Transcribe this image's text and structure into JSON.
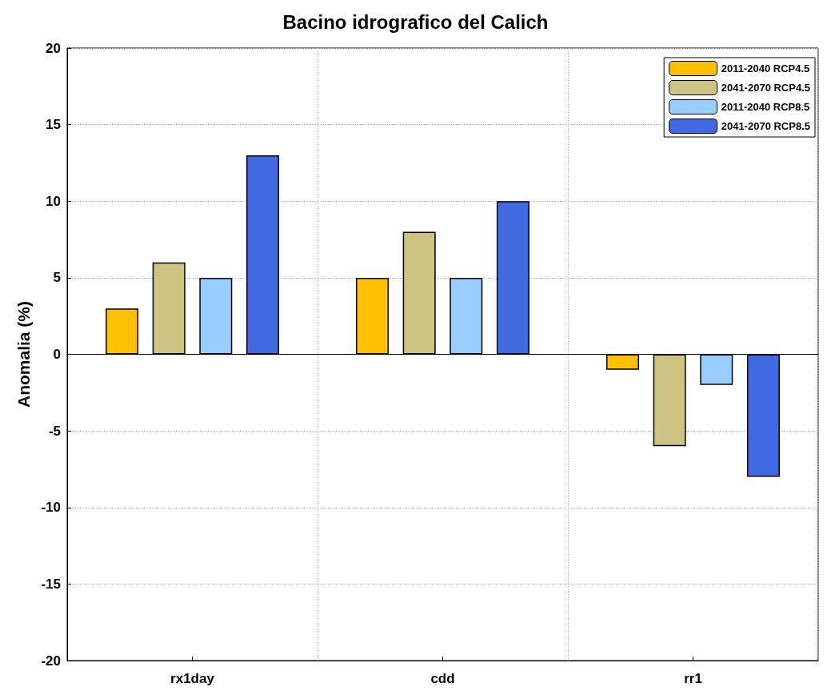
{
  "chart_data": {
    "type": "bar",
    "title": "Bacino idrografico del Calich",
    "ylabel": "Anomalia (%)",
    "categories": [
      "rx1day",
      "cdd",
      "rr1"
    ],
    "series": [
      {
        "name": "2011-2040 RCP4.5",
        "color": "#ffc000",
        "values": [
          3,
          5,
          -1
        ]
      },
      {
        "name": "2041-2070 RCP4.5",
        "color": "#ccc480",
        "values": [
          6,
          8,
          -6
        ]
      },
      {
        "name": "2011-2040 RCP8.5",
        "color": "#99ccff",
        "values": [
          5,
          5,
          -2
        ]
      },
      {
        "name": "2041-2070 RCP8.5",
        "color": "#4169e1",
        "values": [
          13,
          10,
          -8
        ]
      }
    ],
    "ylim": [
      -20,
      20
    ],
    "yticks": [
      -20,
      -15,
      -10,
      -5,
      0,
      5,
      10,
      15,
      20
    ],
    "grid": true,
    "legend": "top right"
  }
}
